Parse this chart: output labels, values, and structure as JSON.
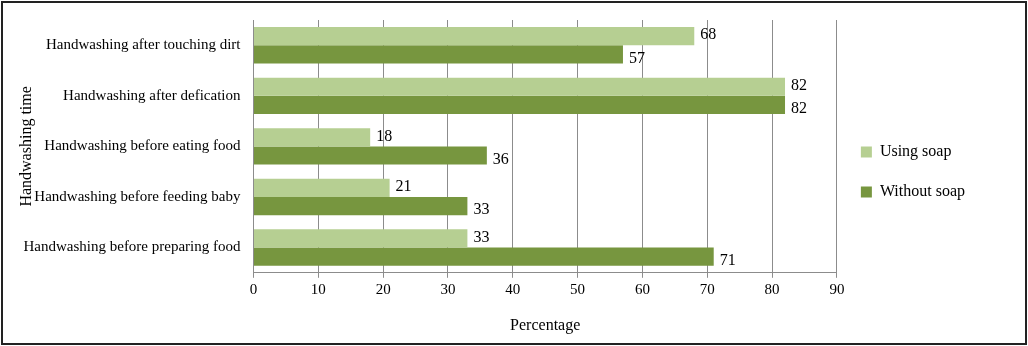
{
  "chart_data": {
    "type": "bar",
    "orientation": "horizontal",
    "ylabel": "Handwashing time",
    "xlabel": "Percentage",
    "categories": [
      "Handwashing after touching dirt",
      "Handwashing after defication",
      "Handwashing before eating food",
      "Handwashing before feeding baby",
      "Handwashing before preparing food"
    ],
    "series": [
      {
        "name": "Using soap",
        "color": "#b6cf92",
        "values": [
          68,
          82,
          18,
          21,
          33
        ]
      },
      {
        "name": "Without soap",
        "color": "#77963f",
        "values": [
          57,
          82,
          36,
          33,
          71
        ]
      }
    ],
    "xlim": [
      0,
      90
    ],
    "xticks": [
      0,
      10,
      20,
      30,
      40,
      50,
      60,
      70,
      80,
      90
    ],
    "grid": "x",
    "legend": "right",
    "data_labels": true
  }
}
